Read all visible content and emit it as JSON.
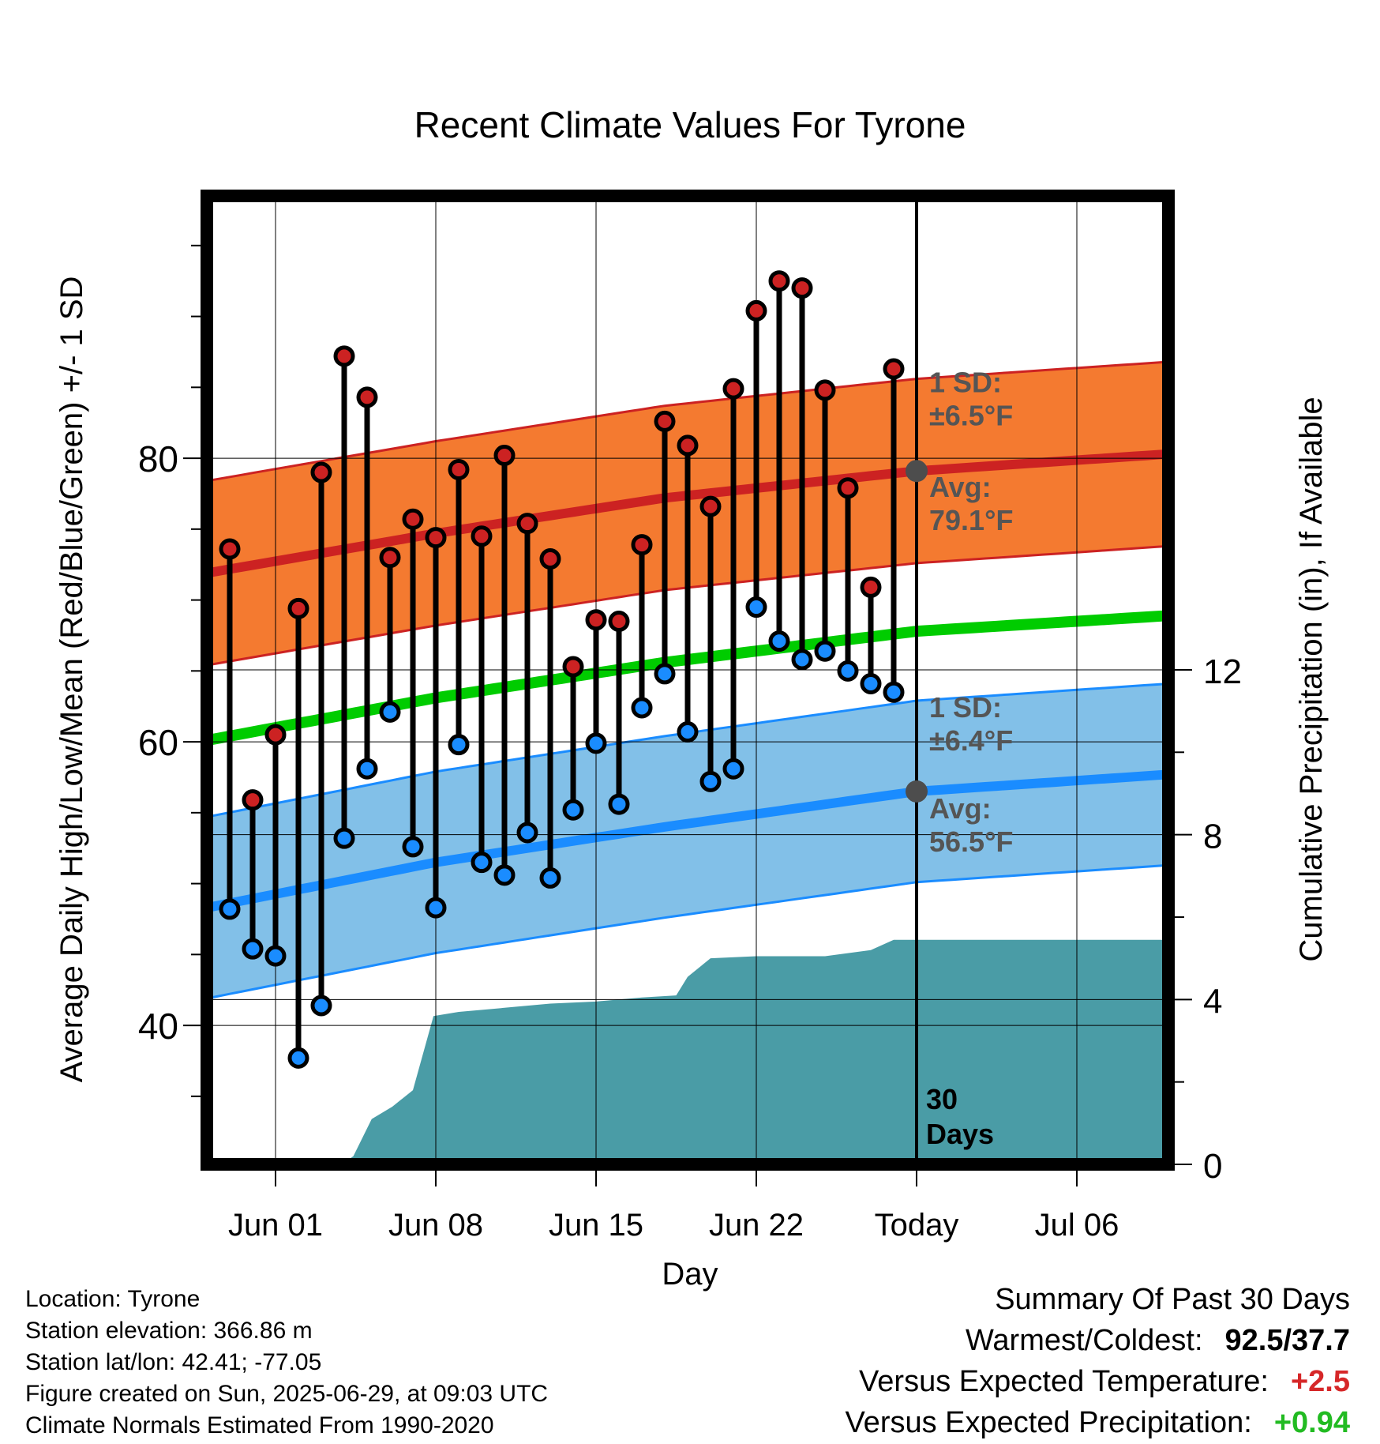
{
  "chart_data": {
    "type": "line",
    "title": "Recent Climate Values For Tyrone",
    "xlabel": "Day",
    "ylabel": "Average Daily High/Low/Mean (Red/Blue/Green) +/- 1 SD",
    "y2label": "Cumulative Precipitation (in), If Available",
    "xlim": [
      0,
      42
    ],
    "ylim": [
      30.2,
      98.5
    ],
    "y2lim": [
      0,
      23.5
    ],
    "yticks": [
      40,
      60,
      80
    ],
    "y2ticks": [
      0,
      4,
      8,
      12
    ],
    "xticks": [
      {
        "x": 3,
        "label": "Jun 01"
      },
      {
        "x": 10,
        "label": "Jun 08"
      },
      {
        "x": 17,
        "label": "Jun 15"
      },
      {
        "x": 24,
        "label": "Jun 22"
      },
      {
        "x": 31,
        "label": "Today"
      },
      {
        "x": 38,
        "label": "Jul 06"
      }
    ],
    "today_x": 31,
    "today_label": [
      "30",
      "Days"
    ],
    "grid": true,
    "normal_high": {
      "color": "#cc2222",
      "mean": [
        [
          0,
          71.9
        ],
        [
          10,
          74.7
        ],
        [
          20,
          77.2
        ],
        [
          31,
          79.1
        ],
        [
          42,
          80.3
        ]
      ],
      "sd_label": [
        "1 SD:",
        "±6.5°F"
      ],
      "avg_label": [
        "Avg:",
        "79.1°F"
      ],
      "avg_value": 79.1,
      "sd": 6.5
    },
    "normal_low": {
      "color": "#1a8cff",
      "mean": [
        [
          0,
          48.3
        ],
        [
          10,
          51.5
        ],
        [
          20,
          54.0
        ],
        [
          31,
          56.5
        ],
        [
          42,
          57.7
        ]
      ],
      "sd_label": [
        "1 SD:",
        "±6.4°F"
      ],
      "avg_label": [
        "Avg:",
        "56.5°F"
      ],
      "avg_value": 56.5,
      "sd": 6.4
    },
    "normal_mean": {
      "color": "#00cc00",
      "mean": [
        [
          0,
          60.1
        ],
        [
          10,
          63.1
        ],
        [
          20,
          65.6
        ],
        [
          31,
          67.8
        ],
        [
          42,
          68.9
        ]
      ]
    },
    "daily": {
      "high_color": "#cc2222",
      "low_color": "#1a8cff",
      "x": [
        1,
        2,
        3,
        4,
        5,
        6,
        7,
        8,
        9,
        10,
        11,
        12,
        13,
        14,
        15,
        16,
        17,
        18,
        19,
        20,
        21,
        22,
        23,
        24,
        25,
        26,
        27,
        28,
        29,
        30
      ],
      "high": [
        73.6,
        55.9,
        60.5,
        69.4,
        79.0,
        87.2,
        84.3,
        73.0,
        75.7,
        74.4,
        79.2,
        74.5,
        80.2,
        75.4,
        72.9,
        65.3,
        68.6,
        68.5,
        73.9,
        82.6,
        80.9,
        76.6,
        84.9,
        90.4,
        92.5,
        92.0,
        84.8,
        77.9,
        70.9,
        86.3
      ],
      "low": [
        48.2,
        45.4,
        44.9,
        37.7,
        41.4,
        53.2,
        58.1,
        62.1,
        52.6,
        48.3,
        59.8,
        51.5,
        50.6,
        53.6,
        50.4,
        55.2,
        59.9,
        55.6,
        62.4,
        64.8,
        60.7,
        57.2,
        58.1,
        69.5,
        67.1,
        65.8,
        66.4,
        65.0,
        64.1,
        63.5
      ]
    },
    "precip": {
      "color": "#4a9ca6",
      "cumulative": [
        [
          5.9,
          0
        ],
        [
          6.4,
          0.2
        ],
        [
          7.2,
          1.1
        ],
        [
          8.1,
          1.4
        ],
        [
          9.0,
          1.8
        ],
        [
          9.9,
          3.6
        ],
        [
          11.0,
          3.7
        ],
        [
          13.0,
          3.8
        ],
        [
          15.0,
          3.9
        ],
        [
          17.0,
          3.95
        ],
        [
          19.0,
          4.05
        ],
        [
          20.5,
          4.1
        ],
        [
          21.0,
          4.55
        ],
        [
          22.0,
          5.0
        ],
        [
          24.0,
          5.05
        ],
        [
          27.0,
          5.05
        ],
        [
          29.0,
          5.2
        ],
        [
          30.0,
          5.45
        ],
        [
          31.0,
          5.45
        ],
        [
          42.0,
          5.45
        ]
      ]
    }
  },
  "footer": {
    "location": "Location: Tyrone",
    "elevation": "Station elevation: 366.86 m",
    "latlon": "Station lat/lon: 42.41; -77.05",
    "created": "Figure created on Sun, 2025-06-29, at 09:03 UTC",
    "normals": "Climate Normals Estimated From 1990-2020"
  },
  "summary": {
    "title": "Summary Of Past 30 Days",
    "warm_cold_label": "Warmest/Coldest:",
    "warm_cold_value": "92.5/37.7",
    "temp_label": "Versus Expected Temperature:",
    "temp_value": "+2.5",
    "temp_color": "#d62728",
    "precip_label": "Versus Expected Precipitation:",
    "precip_value": "+0.94",
    "precip_color": "#22bb22"
  }
}
